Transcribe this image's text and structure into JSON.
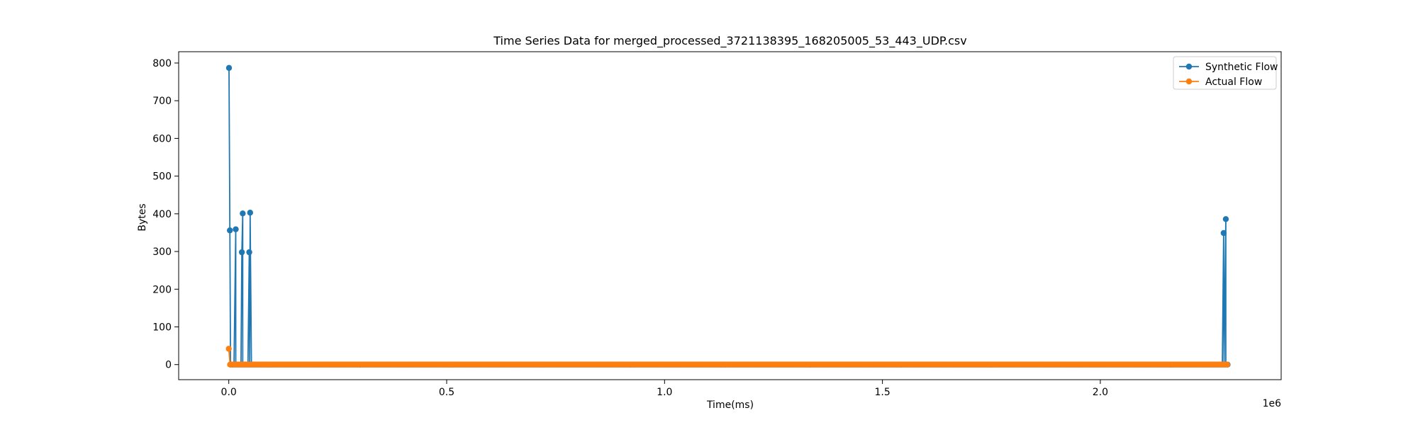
{
  "chart_data": {
    "type": "line",
    "title": "Time Series Data for merged_processed_3721138395_168205005_53_443_UDP.csv",
    "xlabel": "Time(ms)",
    "ylabel": "Bytes",
    "x_offset_label": "1e6",
    "xlim": [
      -0.115,
      2.415
    ],
    "ylim": [
      -40,
      830
    ],
    "x_ticks": [
      0.0,
      0.5,
      1.0,
      1.5,
      2.0
    ],
    "x_tick_labels": [
      "0.0",
      "0.5",
      "1.0",
      "1.5",
      "2.0"
    ],
    "y_ticks": [
      0,
      100,
      200,
      300,
      400,
      500,
      600,
      700,
      800
    ],
    "y_tick_labels": [
      "0",
      "100",
      "200",
      "300",
      "400",
      "500",
      "600",
      "700",
      "800"
    ],
    "x_scale_note": "x values in units of 1e6 ms",
    "legend": {
      "position": "top-right"
    },
    "grid": false,
    "series": [
      {
        "name": "Synthetic Flow",
        "color": "#1f77b4",
        "marker": "circle",
        "spikes": [
          [
            0.0005,
            787
          ],
          [
            0.0025,
            356
          ],
          [
            0.016,
            359
          ],
          [
            0.03,
            298
          ],
          [
            0.032,
            401
          ],
          [
            0.047,
            298
          ],
          [
            0.049,
            403
          ],
          [
            2.283,
            349
          ],
          [
            2.288,
            386
          ]
        ],
        "baseline": {
          "y": 0,
          "x_start": 0.004,
          "x_end": 2.293,
          "step": 0.004
        }
      },
      {
        "name": "Actual Flow",
        "color": "#ff7f0e",
        "marker": "circle",
        "spikes": [
          [
            0.0,
            42
          ]
        ],
        "baseline": {
          "y": 0,
          "x_start": 0.003,
          "x_end": 2.293,
          "step": 0.004
        }
      }
    ]
  }
}
